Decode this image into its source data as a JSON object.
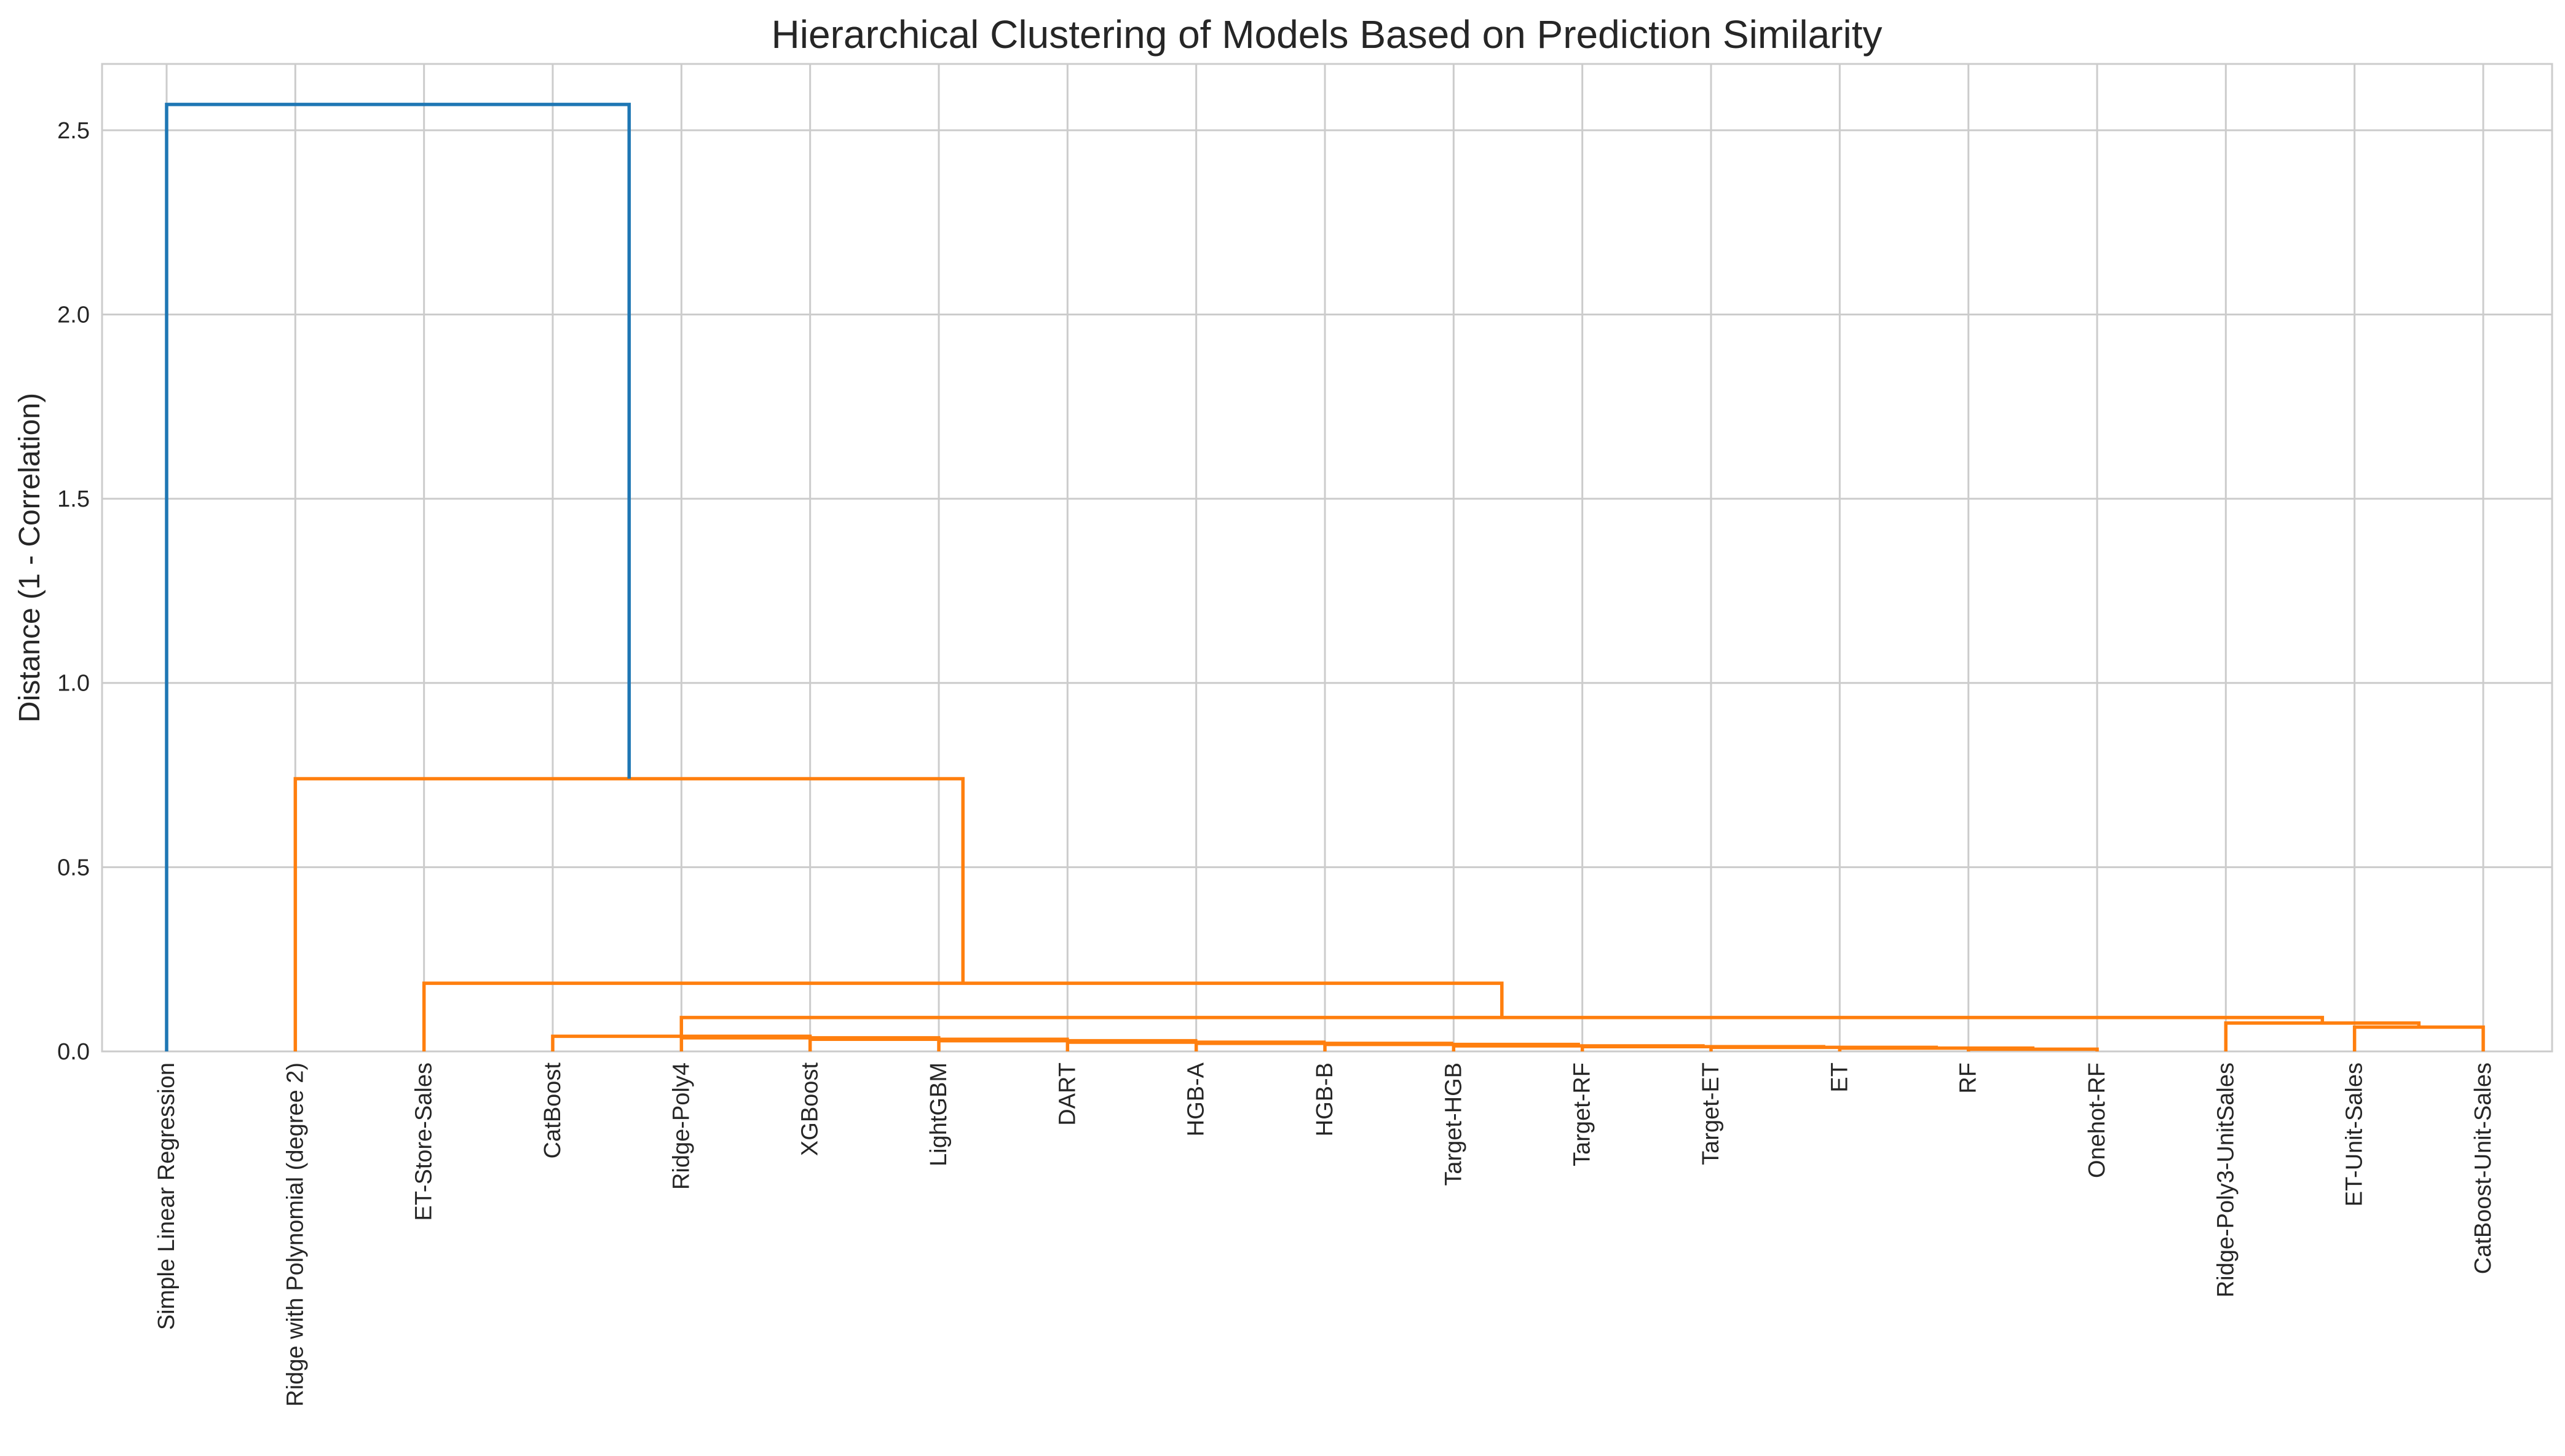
{
  "chart_data": {
    "type": "dendrogram",
    "title": "Hierarchical Clustering of Models Based on Prediction Similarity",
    "xlabel": "",
    "ylabel": "Distance (1 - Correlation)",
    "ylim": [
      0,
      2.68
    ],
    "yticks": [
      0.0,
      0.5,
      1.0,
      1.5,
      2.0,
      2.5
    ],
    "ytick_labels": [
      "0.0",
      "0.5",
      "1.0",
      "1.5",
      "2.0",
      "2.5"
    ],
    "grid": true,
    "leaves": [
      "Simple Linear Regression",
      "Ridge with Polynomial (degree 2)",
      "ET-Store-Sales",
      "CatBoost",
      "Ridge-Poly4",
      "XGBoost",
      "LightGBM",
      "DART",
      "HGB-A",
      "HGB-B",
      "Target-HGB",
      "Target-RF",
      "Target-ET",
      "ET",
      "RF",
      "Onehot-RF",
      "Ridge-Poly3-UnitSales",
      "ET-Unit-Sales",
      "CatBoost-Unit-Sales"
    ],
    "colors": {
      "above_threshold": "#1f77b4",
      "cluster": "#ff7f0e"
    },
    "merges": [
      {
        "left": "leaf:Onehot-RF",
        "right": "leaf:RF",
        "height": 0.006,
        "color": "cluster"
      },
      {
        "left": "leaf:ET",
        "right": "node:0",
        "height": 0.009,
        "color": "cluster"
      },
      {
        "left": "leaf:Target-ET",
        "right": "node:1",
        "height": 0.011,
        "color": "cluster"
      },
      {
        "left": "leaf:Target-RF",
        "right": "node:2",
        "height": 0.013,
        "color": "cluster"
      },
      {
        "left": "leaf:Target-HGB",
        "right": "node:3",
        "height": 0.015,
        "color": "cluster"
      },
      {
        "left": "leaf:HGB-B",
        "right": "node:4",
        "height": 0.019,
        "color": "cluster"
      },
      {
        "left": "leaf:HGB-A",
        "right": "node:5",
        "height": 0.022,
        "color": "cluster"
      },
      {
        "left": "leaf:DART",
        "right": "node:6",
        "height": 0.025,
        "color": "cluster"
      },
      {
        "left": "leaf:LightGBM",
        "right": "node:7",
        "height": 0.029,
        "color": "cluster"
      },
      {
        "left": "leaf:XGBoost",
        "right": "node:8",
        "height": 0.033,
        "color": "cluster"
      },
      {
        "left": "leaf:Ridge-Poly4",
        "right": "node:9",
        "height": 0.037,
        "color": "cluster"
      },
      {
        "left": "leaf:CatBoost",
        "right": "node:10",
        "height": 0.041,
        "color": "cluster"
      },
      {
        "left": "leaf:ET-Unit-Sales",
        "right": "leaf:CatBoost-Unit-Sales",
        "height": 0.066,
        "color": "cluster"
      },
      {
        "left": "leaf:Ridge-Poly3-UnitSales",
        "right": "node:12",
        "height": 0.077,
        "color": "cluster"
      },
      {
        "left": "node:11",
        "right": "node:13",
        "height": 0.092,
        "color": "cluster"
      },
      {
        "left": "leaf:ET-Store-Sales",
        "right": "node:14",
        "height": 0.185,
        "color": "cluster"
      },
      {
        "left": "leaf:Ridge with Polynomial (degree 2)",
        "right": "node:15",
        "height": 0.74,
        "color": "cluster"
      },
      {
        "left": "leaf:Simple Linear Regression",
        "right": "node:16",
        "height": 2.57,
        "color": "above_threshold"
      }
    ]
  }
}
